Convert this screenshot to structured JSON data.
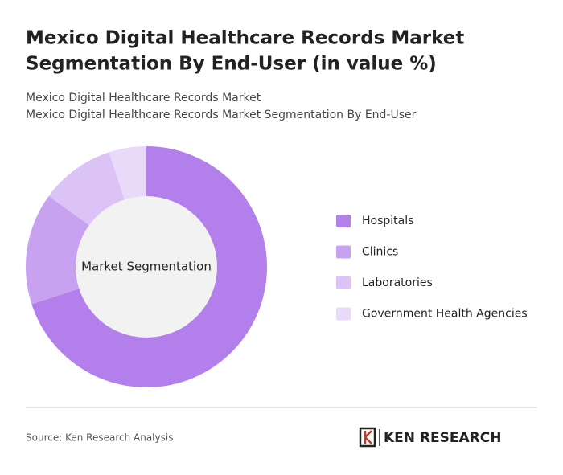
{
  "chart_data": {
    "type": "pie",
    "title": [
      "Mexico Digital Healthcare Records Market",
      "Segmentation By End-User (in value %)"
    ],
    "subtitle": [
      "Mexico Digital Healthcare Records Market",
      "Mexico Digital Healthcare Records Market Segmentation By End-User"
    ],
    "center_label": "Market Segmentation",
    "categories": [
      "Hospitals",
      "Clinics",
      "Laboratories",
      "Government Health Agencies"
    ],
    "values": [
      70,
      15,
      10,
      5
    ],
    "colors": [
      "#b37fea",
      "#c8a2f0",
      "#dcc3f6",
      "#e9dafa"
    ]
  },
  "source": "Source: Ken Research Analysis",
  "brand": "KEN RESEARCH"
}
